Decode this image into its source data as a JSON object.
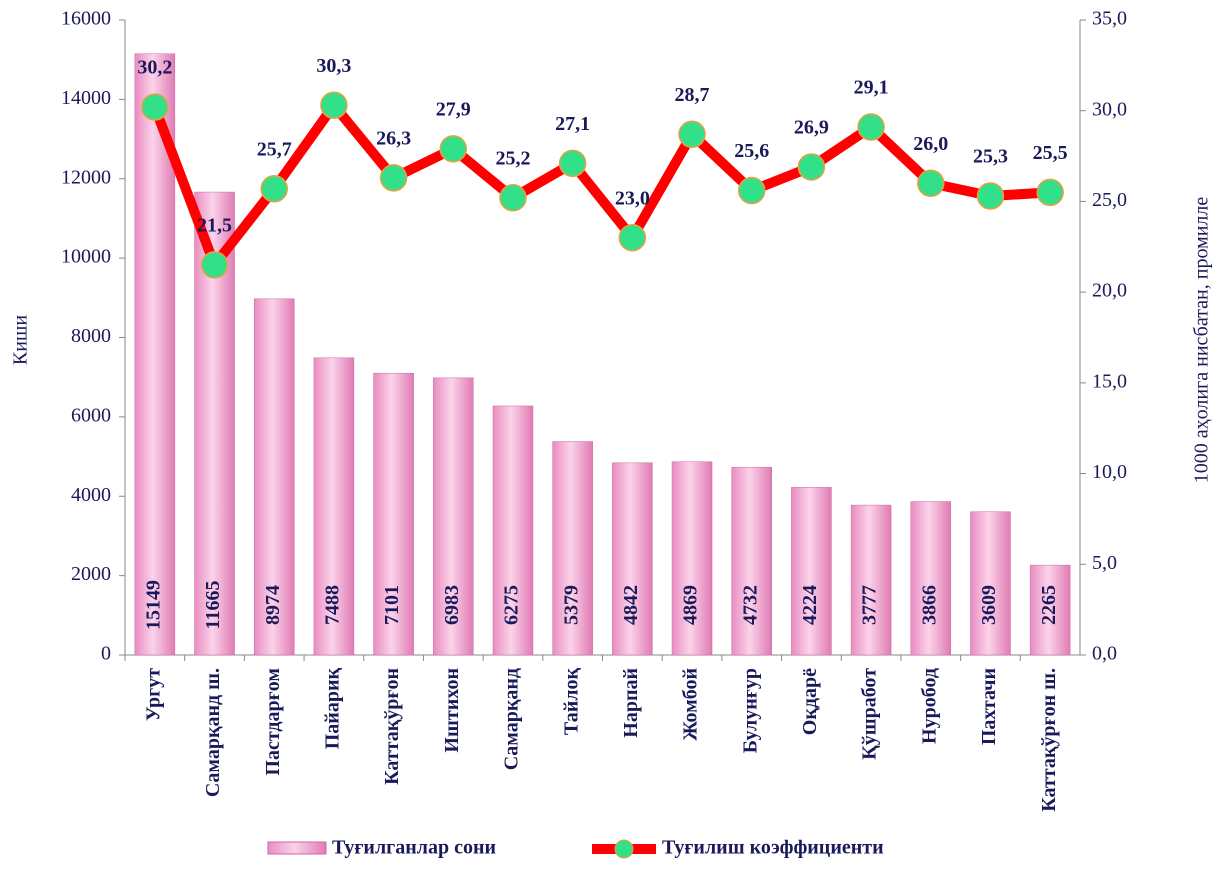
{
  "chart_data": {
    "type": "combo",
    "y_label": "Киши",
    "y2_label": "1000 аҳолига нисбатан, промилле",
    "categories": [
      "Ургут",
      "Самарқанд ш.",
      "Пастдарғом",
      "Пайариқ",
      "Каттақўрғон",
      "Иштихон",
      "Самарқанд",
      "Тайлоқ",
      "Нарпай",
      "Жомбой",
      "Булунғур",
      "Оқдарё",
      "Қўшработ",
      "Нуробод",
      "Пахтачи",
      "Каттақўрғон ш."
    ],
    "series": [
      {
        "name": "Туғилганлар сони",
        "type": "bar",
        "color": "#f4a6d0",
        "axis": "y",
        "values": [
          15149,
          11665,
          8974,
          7488,
          7101,
          6983,
          6275,
          5379,
          4842,
          4869,
          4732,
          4224,
          3777,
          3866,
          3609,
          2265
        ]
      },
      {
        "name": "Туғилиш коэффициенти",
        "type": "line",
        "color": "#ff0000",
        "marker_color": "#33e08a",
        "axis": "y2",
        "values": [
          30.2,
          21.5,
          25.7,
          30.3,
          26.3,
          27.9,
          25.2,
          27.1,
          23.0,
          28.7,
          25.6,
          26.9,
          29.1,
          26.0,
          25.3,
          25.5
        ],
        "value_labels": [
          "30,2",
          "21,5",
          "25,7",
          "30,3",
          "26,3",
          "27,9",
          "25,2",
          "27,1",
          "23,0",
          "28,7",
          "25,6",
          "26,9",
          "29,1",
          "26,0",
          "25,3",
          "25,5"
        ]
      }
    ],
    "ylim": [
      0,
      16000
    ],
    "yticks": [
      0,
      2000,
      4000,
      6000,
      8000,
      10000,
      12000,
      14000,
      16000
    ],
    "y2lim": [
      0,
      35
    ],
    "y2ticks": [
      {
        "value": 0,
        "label": "0,0"
      },
      {
        "value": 5,
        "label": "5,0"
      },
      {
        "value": 10,
        "label": "10,0"
      },
      {
        "value": 15,
        "label": "15,0"
      },
      {
        "value": 20,
        "label": "20,0"
      },
      {
        "value": 25,
        "label": "25,0"
      },
      {
        "value": 30,
        "label": "30,0"
      },
      {
        "value": 35,
        "label": "35,0"
      }
    ],
    "legend": "bottom"
  }
}
